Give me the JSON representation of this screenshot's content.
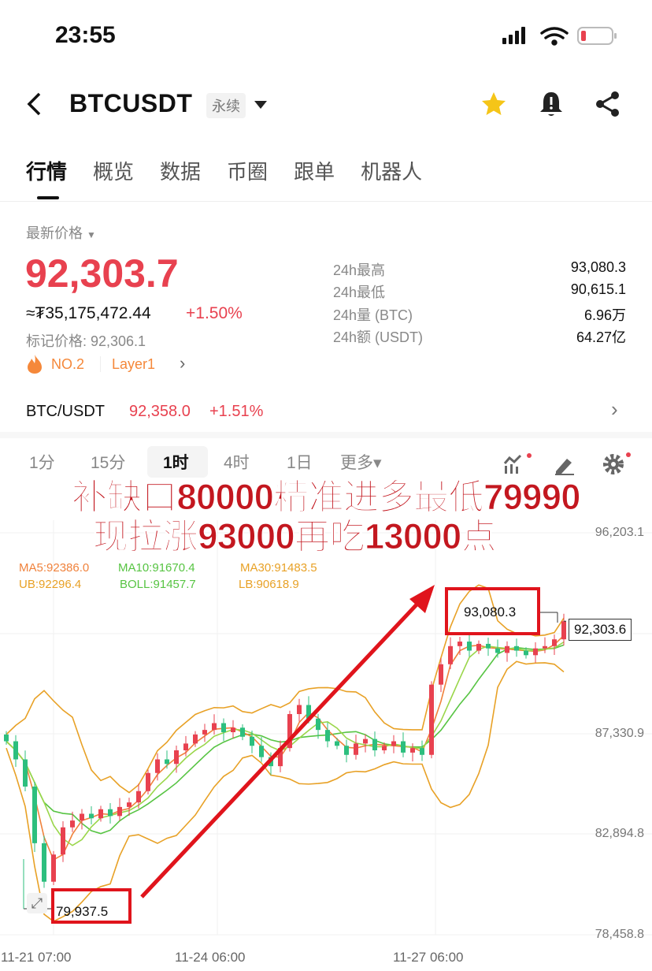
{
  "status": {
    "time": "23:55"
  },
  "header": {
    "symbol": "BTCUSDT",
    "contract_tag": "永续",
    "icons": [
      "back-icon",
      "chevron-down-icon",
      "star-icon",
      "bell-alert-icon",
      "share-icon"
    ],
    "star_color": "#f5c518"
  },
  "tabs": [
    {
      "label": "行情",
      "active": true
    },
    {
      "label": "概览"
    },
    {
      "label": "数据"
    },
    {
      "label": "币圈"
    },
    {
      "label": "跟单"
    },
    {
      "label": "机器人"
    }
  ],
  "price": {
    "label": "最新价格",
    "last": "92,303.7",
    "fiat": "≈₮35,175,472.44",
    "change": "+1.50%",
    "mark_label": "标记价格: 92,306.1",
    "rank": "NO.2",
    "sector": "Layer1",
    "up_color": "#e8414f"
  },
  "stats": [
    {
      "label": "24h最高",
      "value": "93,080.3"
    },
    {
      "label": "24h最低",
      "value": "90,615.1"
    },
    {
      "label": "24h量 (BTC)",
      "value": "6.96万"
    },
    {
      "label": "24h额 (USDT)",
      "value": "64.27亿"
    }
  ],
  "spot": {
    "pair": "BTC/USDT",
    "price": "92,358.0",
    "change": "+1.51%"
  },
  "intervals": [
    {
      "label": "1分"
    },
    {
      "label": "15分"
    },
    {
      "label": "1时",
      "active": true
    },
    {
      "label": "4时"
    },
    {
      "label": "1日"
    },
    {
      "label": "更多▾"
    }
  ],
  "indicators": {
    "ma5": "MA5:92386.0",
    "ma10": "MA10:91670.4",
    "ma30": "MA30:91483.5",
    "ub": "UB:92296.4",
    "boll": "BOLL:91457.7",
    "lb": "LB:90618.9"
  },
  "overlay": {
    "line1": "补缺口80000精准进多最低79990",
    "line2": "现拉涨93000再吃13000点",
    "color": "#c3171f"
  },
  "chart_data": {
    "type": "candlestick",
    "yticks": [
      "96,203.1",
      "87,330.9",
      "82,894.8",
      "78,458.8"
    ],
    "ylim": [
      78458.8,
      96203.1
    ],
    "xticks": [
      "11-21 07:00",
      "11-24 06:00",
      "11-27 06:00"
    ],
    "closes": [
      87000,
      86200,
      85000,
      82500,
      80800,
      82000,
      83200,
      83500,
      83800,
      83600,
      84000,
      83700,
      84100,
      84300,
      84800,
      85600,
      86200,
      86000,
      86600,
      86900,
      87300,
      87500,
      87800,
      87400,
      87600,
      87200,
      86800,
      86300,
      85900,
      86700,
      88200,
      88600,
      88000,
      87500,
      87000,
      86800,
      86400,
      86900,
      87100,
      86600,
      86800,
      87000,
      86500,
      86700,
      86400,
      89500,
      90400,
      91200,
      91400,
      91000,
      91300,
      91100,
      90900,
      91200,
      91000,
      90800,
      91100,
      91200,
      91500,
      92300
    ],
    "high_label": "93,080.3",
    "low_label": "79,937.5",
    "current_label": "92,303.6"
  }
}
